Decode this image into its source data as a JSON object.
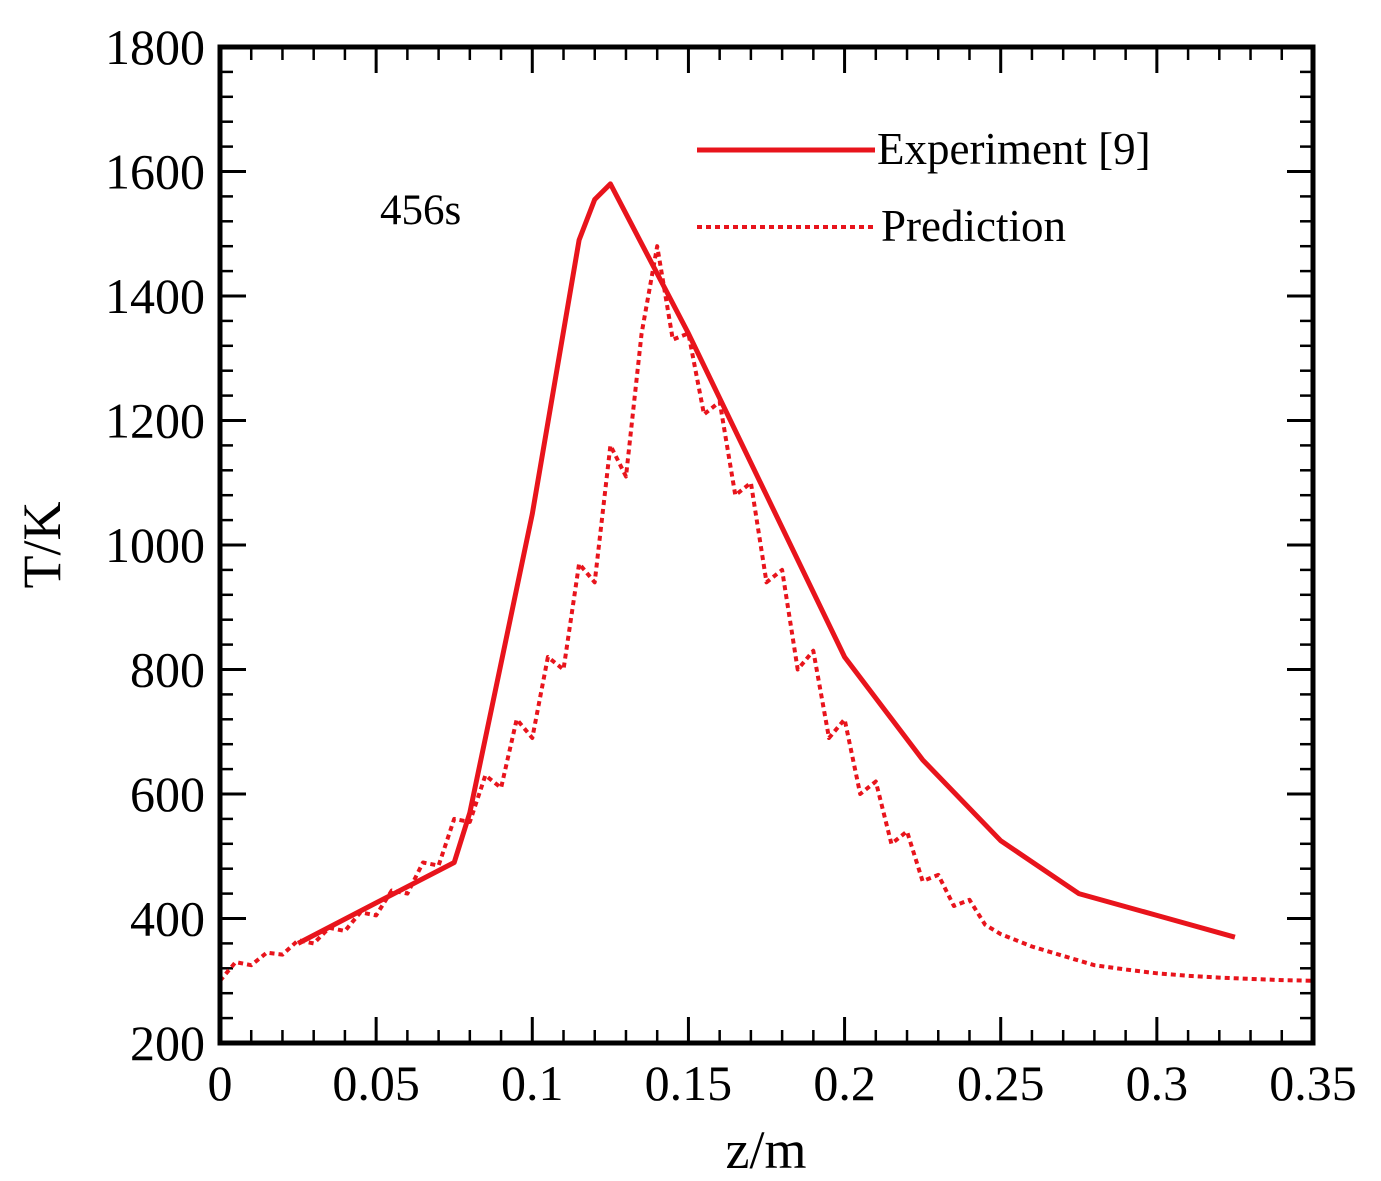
{
  "chart_data": {
    "type": "line",
    "title": "",
    "xlabel": "z/m",
    "ylabel": "T/K",
    "xlim": [
      0,
      0.35
    ],
    "ylim": [
      200,
      1800
    ],
    "x_ticks": [
      0,
      0.05,
      0.1,
      0.15,
      0.2,
      0.25,
      0.3,
      0.35
    ],
    "x_tick_labels": [
      "0",
      "0.05",
      "0.1",
      "0.15",
      "0.2",
      "0.25",
      "0.3",
      "0.35"
    ],
    "y_ticks": [
      200,
      400,
      600,
      800,
      1000,
      1200,
      1400,
      1600,
      1800
    ],
    "y_tick_labels": [
      "200",
      "400",
      "600",
      "800",
      "1000",
      "1200",
      "1400",
      "1600",
      "1800"
    ],
    "annotation": "456s",
    "legend_position": "top-right",
    "color": "#e8141c",
    "series": [
      {
        "name": "Experiment [9]",
        "style": "solid",
        "x": [
          0.025,
          0.05,
          0.075,
          0.08,
          0.1,
          0.115,
          0.12,
          0.125,
          0.15,
          0.175,
          0.2,
          0.225,
          0.25,
          0.275,
          0.3,
          0.325
        ],
        "y": [
          360,
          425,
          490,
          570,
          1050,
          1490,
          1555,
          1580,
          1340,
          1080,
          820,
          655,
          525,
          440,
          405,
          370
        ]
      },
      {
        "name": "Prediction",
        "style": "dotted",
        "x": [
          0,
          0.005,
          0.01,
          0.015,
          0.02,
          0.025,
          0.03,
          0.035,
          0.04,
          0.045,
          0.05,
          0.055,
          0.06,
          0.065,
          0.07,
          0.075,
          0.08,
          0.085,
          0.09,
          0.095,
          0.1,
          0.105,
          0.11,
          0.115,
          0.12,
          0.125,
          0.13,
          0.135,
          0.14,
          0.145,
          0.15,
          0.155,
          0.16,
          0.165,
          0.17,
          0.175,
          0.18,
          0.185,
          0.19,
          0.195,
          0.2,
          0.205,
          0.21,
          0.215,
          0.22,
          0.225,
          0.23,
          0.235,
          0.24,
          0.245,
          0.25,
          0.255,
          0.26,
          0.27,
          0.28,
          0.29,
          0.3,
          0.31,
          0.32,
          0.33,
          0.34,
          0.35
        ],
        "y": [
          300,
          330,
          325,
          345,
          342,
          365,
          360,
          385,
          380,
          410,
          405,
          445,
          440,
          490,
          485,
          560,
          555,
          630,
          610,
          720,
          690,
          820,
          800,
          970,
          940,
          1160,
          1110,
          1340,
          1480,
          1330,
          1340,
          1210,
          1230,
          1080,
          1100,
          940,
          960,
          800,
          830,
          690,
          720,
          600,
          620,
          520,
          540,
          460,
          470,
          420,
          430,
          390,
          375,
          365,
          355,
          340,
          325,
          318,
          312,
          308,
          305,
          303,
          301,
          300
        ]
      }
    ]
  }
}
